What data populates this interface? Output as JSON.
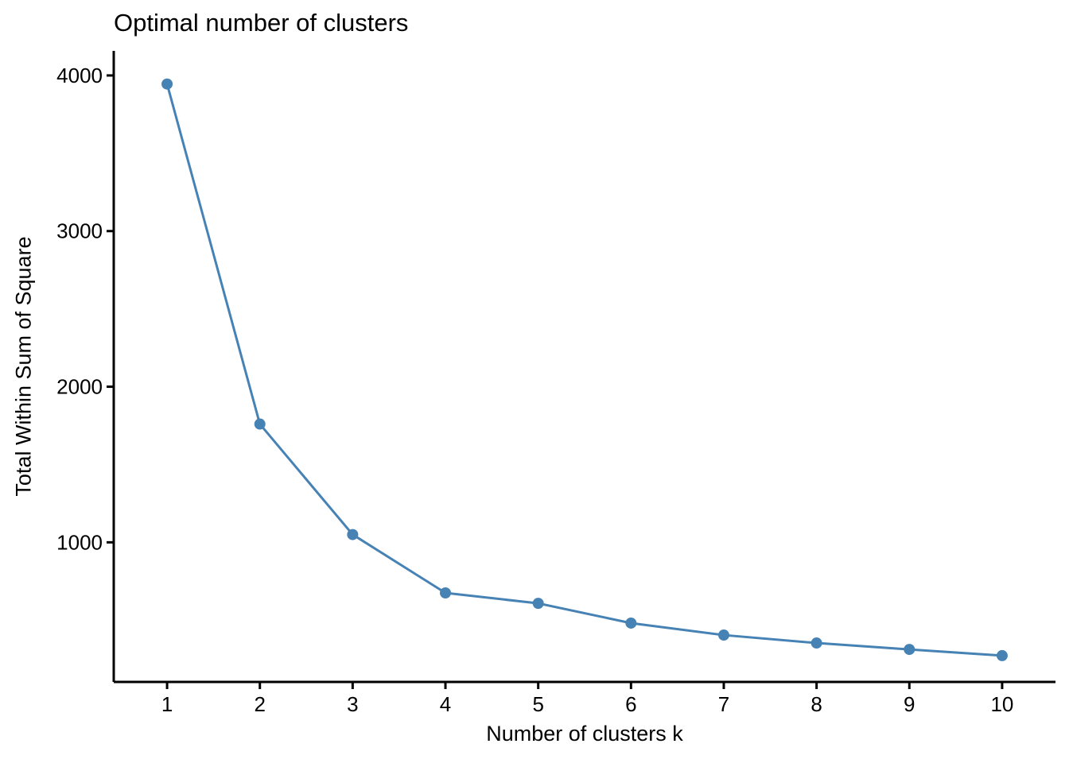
{
  "chart_data": {
    "type": "line",
    "title": "Optimal number of clusters",
    "xlabel": "Number of clusters k",
    "ylabel": "Total Within Sum of Square",
    "x": [
      1,
      2,
      3,
      4,
      5,
      6,
      7,
      8,
      9,
      10
    ],
    "values": [
      3945,
      1760,
      1050,
      675,
      608,
      481,
      404,
      353,
      312,
      272
    ],
    "x_tick_labels": [
      "1",
      "2",
      "3",
      "4",
      "5",
      "6",
      "7",
      "8",
      "9",
      "10"
    ],
    "y_tick_values": [
      1000,
      2000,
      3000,
      4000
    ],
    "y_tick_labels": [
      "1000",
      "2000",
      "3000",
      "4000"
    ],
    "xlim": [
      0.425,
      10.575
    ],
    "ylim": [
      103,
      4158
    ],
    "grid": false,
    "legend": "none",
    "line_color": "#4682B4",
    "point_color": "#4682B4",
    "axis_color": "#000000",
    "text_color": "#000000"
  }
}
